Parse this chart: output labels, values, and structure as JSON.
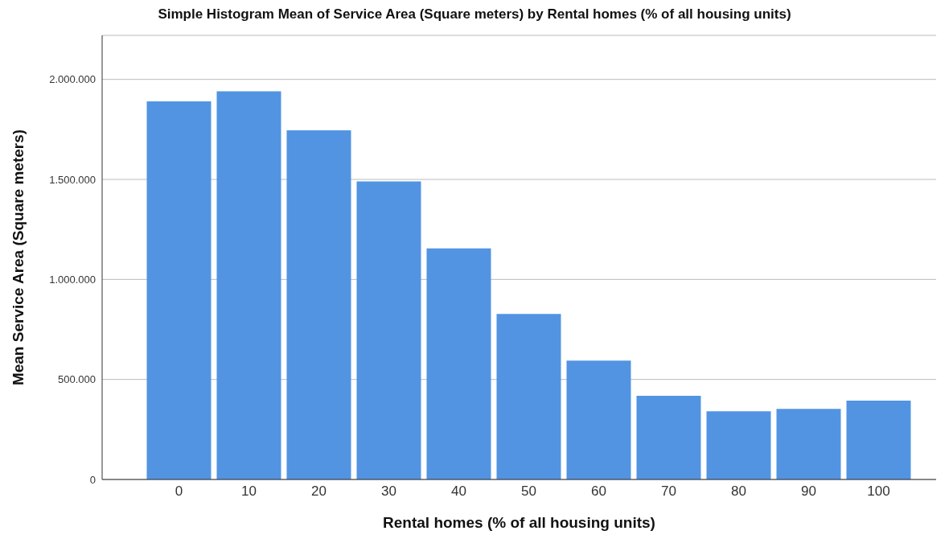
{
  "chart_data": {
    "type": "bar",
    "title": "Simple Histogram Mean of Service Area (Square meters) by Rental homes (% of all housing units)",
    "xlabel": "Rental homes (% of all housing units)",
    "ylabel": "Mean Service Area (Square meters)",
    "categories": [
      "0",
      "10",
      "20",
      "30",
      "40",
      "50",
      "60",
      "70",
      "80",
      "90",
      "100"
    ],
    "values": [
      1890000,
      1940000,
      1745000,
      1490000,
      1155000,
      827000,
      594000,
      418000,
      341000,
      353000,
      394000
    ],
    "color": "#5294e2",
    "ylim": [
      0,
      2220000
    ],
    "yticks": [
      {
        "value": 0,
        "label": "0"
      },
      {
        "value": 500000,
        "label": "500.000"
      },
      {
        "value": 1000000,
        "label": "1.000.000"
      },
      {
        "value": 1500000,
        "label": "1.500.000"
      },
      {
        "value": 2000000,
        "label": "2.000.000"
      }
    ],
    "grid": "y",
    "legend": false
  }
}
